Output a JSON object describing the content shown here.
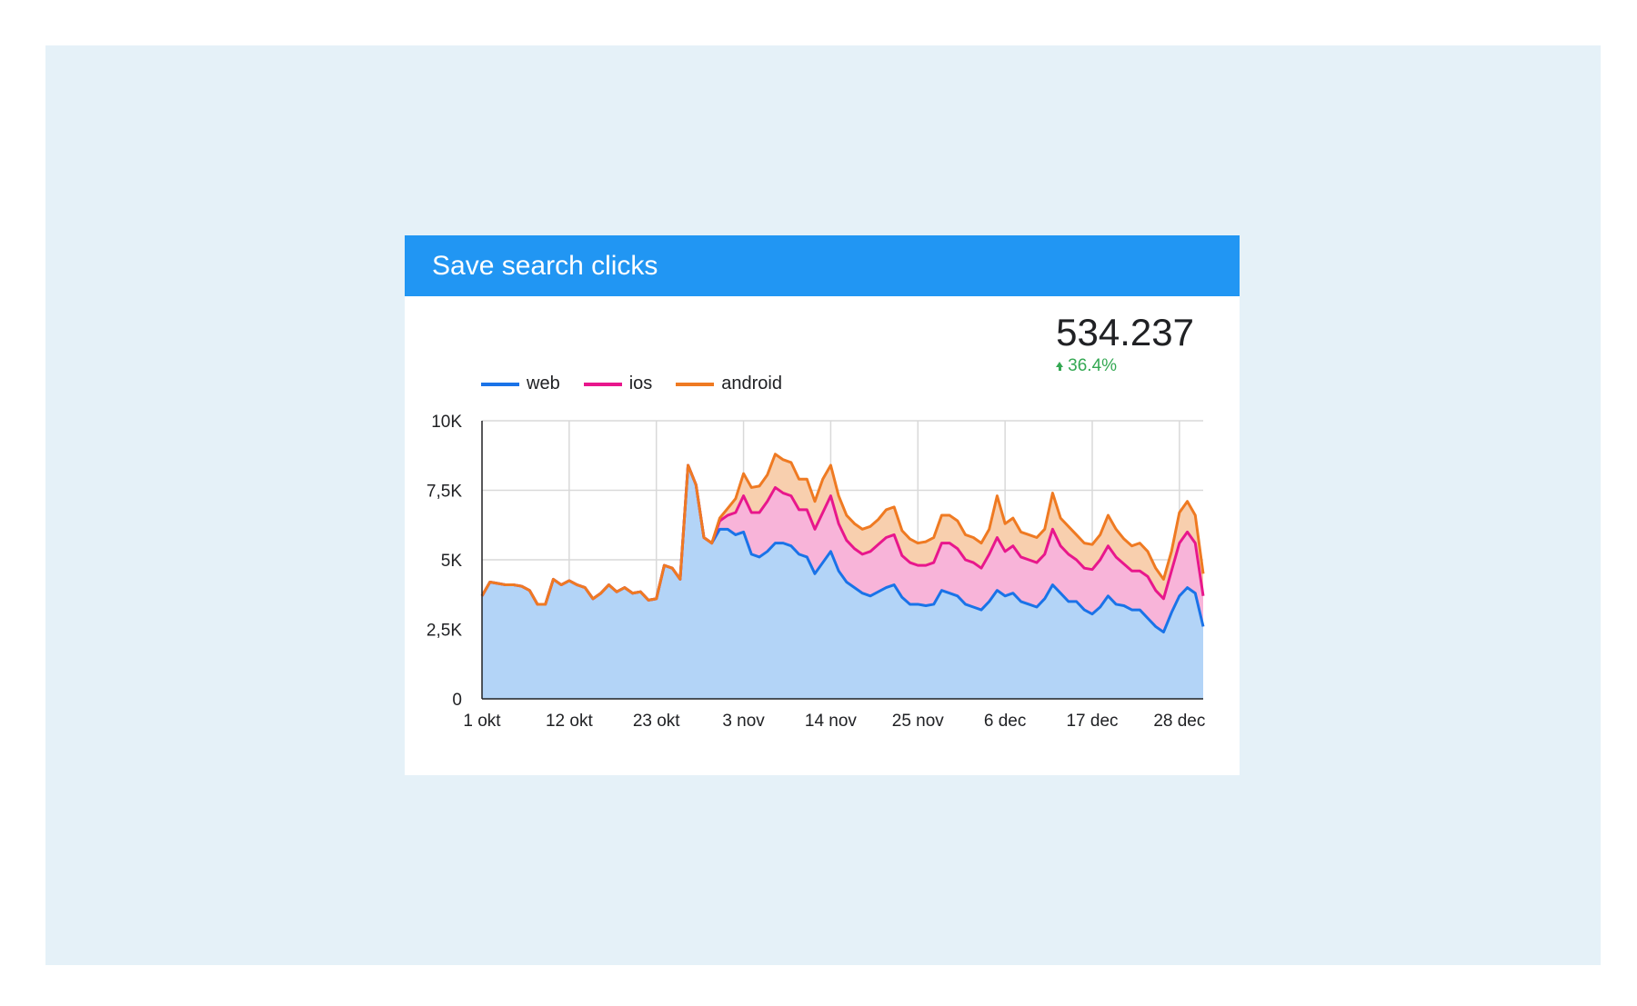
{
  "card": {
    "title": "Save search clicks"
  },
  "scorecard": {
    "value": "534.237",
    "delta": "36.4%",
    "delta_icon": "arrow-up-icon"
  },
  "colors": {
    "header": "#2196f3",
    "web": "#1a73e8",
    "web_fill": "#b3d4f7",
    "ios": "#e8178c",
    "ios_fill": "#f8b4d9",
    "android": "#ef7a22",
    "android_fill": "#f8cfae",
    "positive": "#34a853",
    "grid": "#d9d9d9"
  },
  "legend": [
    {
      "key": "web",
      "label": "web"
    },
    {
      "key": "ios",
      "label": "ios"
    },
    {
      "key": "android",
      "label": "android"
    }
  ],
  "chart_data": {
    "type": "area",
    "stacked": true,
    "title": "Save search clicks",
    "xlabel": "",
    "ylabel": "",
    "ylim": [
      0,
      10000
    ],
    "grid": true,
    "legend_position": "top-left",
    "y_ticks": [
      {
        "value": 0,
        "label": "0"
      },
      {
        "value": 2500,
        "label": "2,5K"
      },
      {
        "value": 5000,
        "label": "5K"
      },
      {
        "value": 7500,
        "label": "7,5K"
      },
      {
        "value": 10000,
        "label": "10K"
      }
    ],
    "x_ticks": [
      {
        "index": 0,
        "label": "1 okt"
      },
      {
        "index": 11,
        "label": "12 okt"
      },
      {
        "index": 22,
        "label": "23 okt"
      },
      {
        "index": 33,
        "label": "3 nov"
      },
      {
        "index": 44,
        "label": "14 nov"
      },
      {
        "index": 55,
        "label": "25 nov"
      },
      {
        "index": 66,
        "label": "6 dec"
      },
      {
        "index": 77,
        "label": "17 dec"
      },
      {
        "index": 88,
        "label": "28 dec"
      }
    ],
    "x_count": 92,
    "series": [
      {
        "name": "web",
        "values": [
          3700,
          4200,
          4150,
          4100,
          4100,
          4050,
          3900,
          3400,
          3400,
          4300,
          4100,
          4250,
          4100,
          4000,
          3600,
          3800,
          4100,
          3850,
          4000,
          3800,
          3850,
          3550,
          3600,
          4800,
          4700,
          4300,
          8400,
          7700,
          5800,
          5600,
          6100,
          6100,
          5900,
          6000,
          5200,
          5100,
          5300,
          5600,
          5600,
          5500,
          5200,
          5100,
          4500,
          4900,
          5300,
          4600,
          4200,
          4000,
          3800,
          3700,
          3850,
          4000,
          4100,
          3650,
          3400,
          3400,
          3350,
          3400,
          3900,
          3800,
          3700,
          3400,
          3300,
          3200,
          3500,
          3900,
          3700,
          3800,
          3500,
          3400,
          3300,
          3600,
          4100,
          3800,
          3500,
          3500,
          3200,
          3050,
          3300,
          3700,
          3400,
          3350,
          3200,
          3200,
          2900,
          2600,
          2400,
          3100,
          3700,
          4000,
          3800,
          2600
        ]
      },
      {
        "name": "ios",
        "values": [
          0,
          0,
          0,
          0,
          0,
          0,
          0,
          0,
          0,
          0,
          0,
          0,
          0,
          0,
          0,
          0,
          0,
          0,
          0,
          0,
          0,
          0,
          0,
          0,
          0,
          0,
          0,
          0,
          0,
          0,
          300,
          500,
          800,
          1300,
          1500,
          1600,
          1800,
          2000,
          1800,
          1800,
          1600,
          1700,
          1600,
          1800,
          2000,
          1700,
          1500,
          1400,
          1400,
          1600,
          1700,
          1800,
          1800,
          1500,
          1500,
          1400,
          1450,
          1500,
          1700,
          1800,
          1700,
          1600,
          1600,
          1500,
          1700,
          1900,
          1600,
          1700,
          1600,
          1600,
          1600,
          1600,
          2000,
          1700,
          1700,
          1500,
          1500,
          1600,
          1700,
          1800,
          1700,
          1500,
          1400,
          1400,
          1500,
          1300,
          1200,
          1500,
          1900,
          2000,
          1800,
          1100
        ]
      },
      {
        "name": "android",
        "values": [
          0,
          0,
          0,
          0,
          0,
          0,
          0,
          0,
          0,
          0,
          0,
          0,
          0,
          0,
          0,
          0,
          0,
          0,
          0,
          0,
          0,
          0,
          0,
          0,
          0,
          0,
          0,
          0,
          0,
          0,
          100,
          250,
          500,
          800,
          900,
          950,
          950,
          1200,
          1200,
          1200,
          1100,
          1100,
          1000,
          1200,
          1100,
          1000,
          900,
          900,
          900,
          900,
          900,
          1000,
          1000,
          900,
          850,
          800,
          850,
          900,
          1000,
          1000,
          1000,
          900,
          900,
          900,
          900,
          1500,
          1000,
          1000,
          900,
          900,
          900,
          900,
          1300,
          1000,
          1000,
          900,
          900,
          900,
          900,
          1100,
          1000,
          900,
          900,
          1000,
          900,
          800,
          700,
          700,
          1100,
          1100,
          1000,
          800
        ]
      }
    ]
  }
}
